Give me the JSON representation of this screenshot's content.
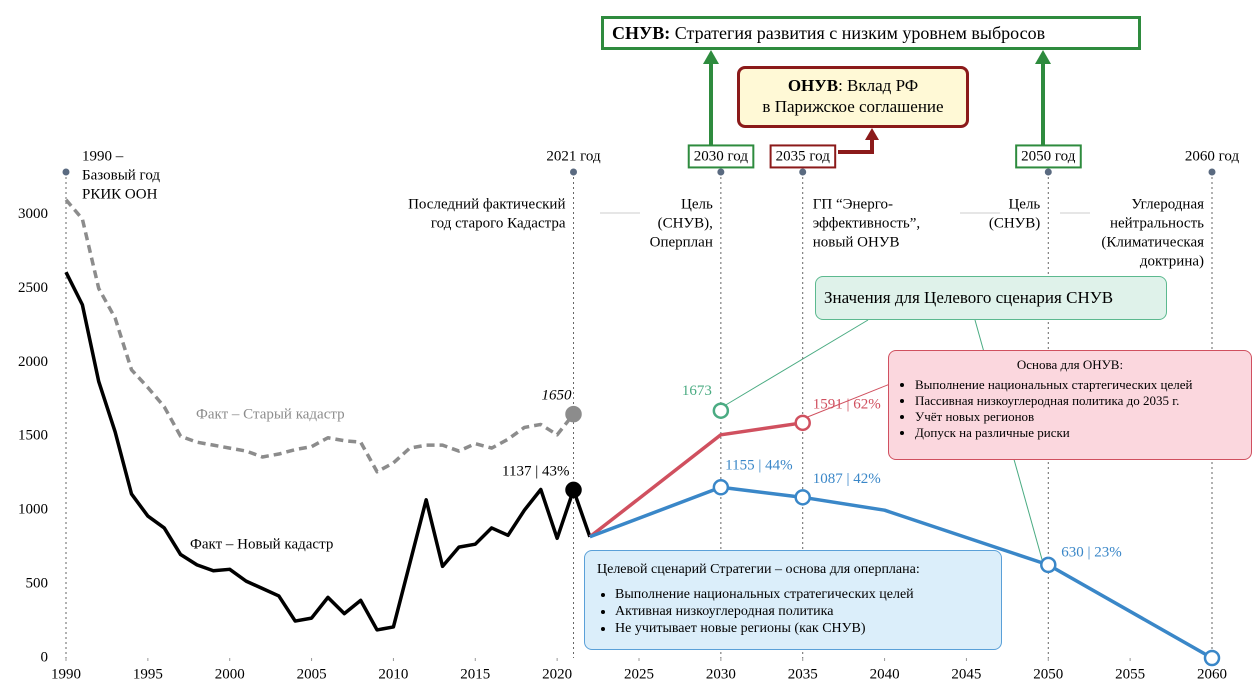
{
  "chart_data": {
    "type": "line",
    "xlim": [
      1990,
      2060
    ],
    "ylim": [
      0,
      3200
    ],
    "xticks": [
      1990,
      1995,
      2000,
      2005,
      2010,
      2015,
      2020,
      2025,
      2030,
      2035,
      2040,
      2045,
      2050,
      2055,
      2060
    ],
    "yticks": [
      0,
      500,
      1000,
      1500,
      2000,
      2500,
      3000
    ],
    "series": [
      {
        "name": "Факт – Старый кадастр",
        "color": "#8c8c8c",
        "dash": true,
        "marker_fill": "filled",
        "x": [
          1990,
          1991,
          1992,
          1993,
          1994,
          1995,
          1996,
          1997,
          1998,
          1999,
          2000,
          2001,
          2002,
          2003,
          2004,
          2005,
          2006,
          2007,
          2008,
          2009,
          2010,
          2011,
          2012,
          2013,
          2014,
          2015,
          2016,
          2017,
          2018,
          2019,
          2020,
          2021
        ],
        "values": [
          3100,
          2970,
          2500,
          2300,
          1950,
          1830,
          1700,
          1500,
          1460,
          1440,
          1420,
          1400,
          1360,
          1380,
          1410,
          1430,
          1490,
          1470,
          1460,
          1260,
          1320,
          1420,
          1440,
          1440,
          1400,
          1450,
          1420,
          1480,
          1560,
          1580,
          1510,
          1650
        ],
        "value_labels": [
          null,
          null,
          null,
          null,
          null,
          null,
          null,
          null,
          null,
          null,
          null,
          null,
          null,
          null,
          null,
          null,
          null,
          null,
          null,
          null,
          null,
          null,
          null,
          null,
          null,
          null,
          null,
          null,
          null,
          null,
          null,
          "1650"
        ]
      },
      {
        "name": "Факт – Новый кадастр",
        "color": "#000000",
        "dash": false,
        "marker_fill": "filled",
        "x": [
          1990,
          1991,
          1992,
          1993,
          1994,
          1995,
          1996,
          1997,
          1998,
          1999,
          2000,
          2001,
          2002,
          2003,
          2004,
          2005,
          2006,
          2007,
          2008,
          2009,
          2010,
          2011,
          2012,
          2013,
          2014,
          2015,
          2016,
          2017,
          2018,
          2019,
          2020,
          2021,
          2022
        ],
        "values": [
          2610,
          2390,
          1870,
          1530,
          1110,
          960,
          880,
          700,
          630,
          590,
          600,
          520,
          470,
          420,
          250,
          270,
          410,
          300,
          390,
          190,
          210,
          640,
          1070,
          620,
          750,
          770,
          880,
          830,
          1000,
          1140,
          810,
          1137,
          820
        ],
        "value_labels": [
          null,
          null,
          null,
          null,
          null,
          null,
          null,
          null,
          null,
          null,
          null,
          null,
          null,
          null,
          null,
          null,
          null,
          null,
          null,
          null,
          null,
          null,
          null,
          null,
          null,
          null,
          null,
          null,
          null,
          null,
          null,
          "1137 | 43%",
          null
        ]
      },
      {
        "color": "#d0505f",
        "dash": false,
        "marker_fill": "open",
        "x": [
          2022,
          2030,
          2035
        ],
        "values": [
          820,
          1510,
          1591
        ],
        "value_labels": [
          null,
          null,
          "1591 | 62%"
        ]
      },
      {
        "color": "#3a87c8",
        "dash": false,
        "marker_fill": "open",
        "end_marker": true,
        "x": [
          2022,
          2030,
          2035,
          2040,
          2050,
          2060
        ],
        "values": [
          820,
          1155,
          1087,
          1000,
          630,
          0
        ],
        "value_labels": [
          null,
          "1155 | 44%",
          "1087 | 42%",
          null,
          "630 | 23%",
          null
        ]
      },
      {
        "color": "#4aab82",
        "dash": false,
        "marker_fill": "open",
        "x": [
          2030
        ],
        "values": [
          1673
        ],
        "value_labels": [
          "1673"
        ]
      }
    ],
    "milestones": [
      {
        "x": 1990,
        "label": "1990 –",
        "note": [
          "Базовый год",
          "РКИК ООН"
        ]
      },
      {
        "x": 2021,
        "label": "2021 год",
        "note": [
          "Последний фактический",
          "год старого Кадастра"
        ]
      },
      {
        "x": 2030,
        "label": "2030 год",
        "box": "#2e8b3e",
        "note": [
          "Цель",
          "(СНУВ),",
          "Оперплан"
        ]
      },
      {
        "x": 2035,
        "label": "2035 год",
        "box": "#8b1a1a",
        "note": [
          "ГП “Энерго-",
          "эффективность”,",
          "новый ОНУВ"
        ]
      },
      {
        "x": 2050,
        "label": "2050 год",
        "box": "#2e8b3e",
        "note": [
          "Цель",
          "(СНУВ)"
        ]
      },
      {
        "x": 2060,
        "label": "2060 год",
        "note": [
          "Углеродная",
          "нейтральность",
          "(Климатическая",
          "доктрина)"
        ]
      }
    ],
    "annotations": {
      "snuv": {
        "bold": "СНУВ:",
        "text": "Стратегия развития с низким уровнем выбросов"
      },
      "onuv": {
        "bold": "ОНУВ",
        "text": ": Вклад РФ",
        "line2": "в Парижское соглашение"
      },
      "target_values": "Значения для Целевого сценария СНУВ",
      "onuv_basis": {
        "title": "Основа для ОНУВ:",
        "items": [
          "Выполнение национальных стартегических целей",
          "Пассивная низкоуглеродная политика до 2035 г.",
          "Учёт новых регионов",
          "Допуск на различные риски"
        ]
      },
      "strategy": {
        "title": "Целевой сценарий Стратегии – основа для оперплана:",
        "items": [
          "Выполнение национальных стратегических целей",
          "Активная низкоуглеродная политика",
          "Не учитывает новые регионы (как СНУВ)"
        ]
      }
    }
  }
}
